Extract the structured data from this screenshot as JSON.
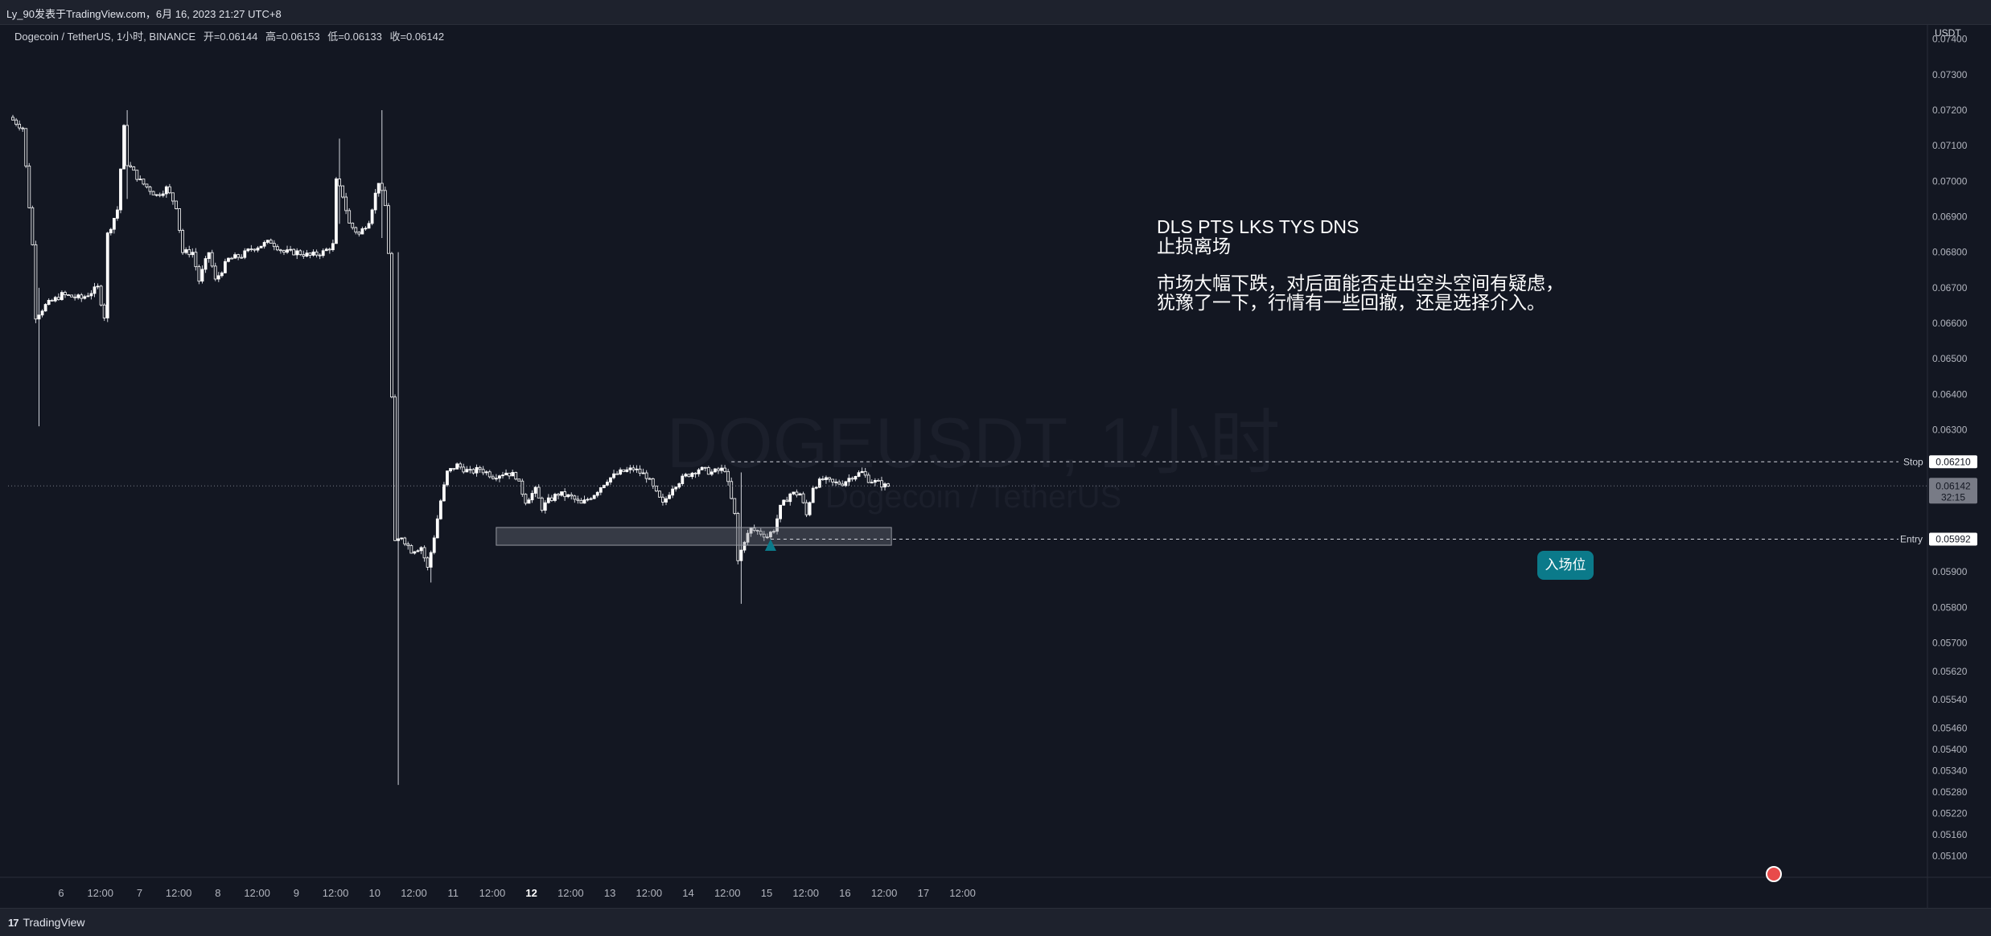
{
  "header": {
    "caption": "Ly_90发表于TradingView.com，6月 16, 2023 21:27 UTC+8"
  },
  "legend": {
    "symbol": "Dogecoin / TetherUS, 1小时, BINANCE",
    "open": "开=0.06144",
    "high": "高=0.06153",
    "low": "低=0.06133",
    "close": "收=0.06142"
  },
  "watermark": {
    "main": "DOGEUSDT, 1小时",
    "sub": "Dogecoin / TetherUS"
  },
  "note": {
    "line1": "DLS PTS LKS TYS DNS",
    "line2": "止损离场",
    "line3": "市场大幅下跌，对后面能否走出空头空间有疑虑，",
    "line4": "犹豫了一下，行情有一些回撤，还是选择介入。"
  },
  "callout": {
    "label": "入场位"
  },
  "footer": {
    "brand": "TradingView"
  },
  "colors": {
    "background": "#131722",
    "candle_up": "#ffffff",
    "candle_down": "#ffffff",
    "wick": "#d1d4dc",
    "grid": "#1c2030",
    "callout": "#0b7a8a"
  },
  "chart_data": {
    "type": "candlestick",
    "currency": "USDT",
    "ylim": [
      0.0504,
      0.0744
    ],
    "y_ticks": [
      "0.07400",
      "0.07300",
      "0.07200",
      "0.07100",
      "0.07000",
      "0.06900",
      "0.06800",
      "0.06700",
      "0.06600",
      "0.06500",
      "0.06400",
      "0.06300",
      "0.05900",
      "0.05800",
      "0.05700",
      "0.05620",
      "0.05540",
      "0.05460",
      "0.05400",
      "0.05340",
      "0.05280",
      "0.05220",
      "0.05160",
      "0.05100"
    ],
    "x_ticks": [
      {
        "label": "6",
        "bold": false
      },
      {
        "label": "12:00",
        "bold": false
      },
      {
        "label": "7",
        "bold": false
      },
      {
        "label": "12:00",
        "bold": false
      },
      {
        "label": "8",
        "bold": false
      },
      {
        "label": "12:00",
        "bold": false
      },
      {
        "label": "9",
        "bold": false
      },
      {
        "label": "12:00",
        "bold": false
      },
      {
        "label": "10",
        "bold": false
      },
      {
        "label": "12:00",
        "bold": false
      },
      {
        "label": "11",
        "bold": false
      },
      {
        "label": "12:00",
        "bold": false
      },
      {
        "label": "12",
        "bold": true
      },
      {
        "label": "12:00",
        "bold": false
      },
      {
        "label": "13",
        "bold": false
      },
      {
        "label": "12:00",
        "bold": false
      },
      {
        "label": "14",
        "bold": false
      },
      {
        "label": "12:00",
        "bold": false
      },
      {
        "label": "15",
        "bold": false
      },
      {
        "label": "12:00",
        "bold": false
      },
      {
        "label": "16",
        "bold": false
      },
      {
        "label": "12:00",
        "bold": false
      },
      {
        "label": "17",
        "bold": false
      },
      {
        "label": "12:00",
        "bold": false
      }
    ],
    "hours_per_day": 24,
    "first_candle_hour": 0,
    "last_price": {
      "value": 0.06142,
      "label": "0.06142",
      "countdown": "32:15"
    },
    "stop": {
      "label": "Stop",
      "value": 0.0621,
      "value_label": "0.06210"
    },
    "entry": {
      "label": "Entry",
      "value": 0.05992,
      "value_label": "0.05992"
    },
    "entry_zone": {
      "from_hour": 148,
      "to_hour": 269,
      "low": 0.05975,
      "high": 0.06025
    },
    "callout_hour": 232,
    "keypoints": [
      [
        0,
        0.0718
      ],
      [
        4,
        0.0715
      ],
      [
        7,
        0.0682
      ],
      [
        8,
        0.0662
      ],
      [
        11,
        0.0665
      ],
      [
        16,
        0.0668
      ],
      [
        22,
        0.0667
      ],
      [
        27,
        0.067
      ],
      [
        29,
        0.0662
      ],
      [
        30,
        0.0685
      ],
      [
        33,
        0.0692
      ],
      [
        35,
        0.0715
      ],
      [
        36,
        0.0705
      ],
      [
        40,
        0.07
      ],
      [
        45,
        0.0696
      ],
      [
        48,
        0.0698
      ],
      [
        51,
        0.0693
      ],
      [
        53,
        0.068
      ],
      [
        56,
        0.068
      ],
      [
        58,
        0.0672
      ],
      [
        61,
        0.068
      ],
      [
        63,
        0.0672
      ],
      [
        67,
        0.0678
      ],
      [
        71,
        0.0679
      ],
      [
        74,
        0.0681
      ],
      [
        77,
        0.0682
      ],
      [
        80,
        0.0683
      ],
      [
        84,
        0.068
      ],
      [
        88,
        0.068
      ],
      [
        92,
        0.0679
      ],
      [
        96,
        0.068
      ],
      [
        99,
        0.0682
      ],
      [
        100,
        0.07
      ],
      [
        102,
        0.0696
      ],
      [
        104,
        0.0688
      ],
      [
        107,
        0.0685
      ],
      [
        110,
        0.0689
      ],
      [
        113,
        0.07
      ],
      [
        115,
        0.0693
      ],
      [
        116,
        0.068
      ],
      [
        118,
        0.0598
      ],
      [
        120,
        0.06
      ],
      [
        123,
        0.0596
      ],
      [
        126,
        0.0597
      ],
      [
        128,
        0.0591
      ],
      [
        130,
        0.06
      ],
      [
        132,
        0.061
      ],
      [
        134,
        0.0618
      ],
      [
        137,
        0.062
      ],
      [
        141,
        0.0618
      ],
      [
        144,
        0.0619
      ],
      [
        148,
        0.0617
      ],
      [
        152,
        0.0618
      ],
      [
        155,
        0.0617
      ],
      [
        158,
        0.061
      ],
      [
        161,
        0.0613
      ],
      [
        163,
        0.0608
      ],
      [
        165,
        0.061
      ],
      [
        168,
        0.0612
      ],
      [
        172,
        0.0611
      ],
      [
        175,
        0.0609
      ],
      [
        179,
        0.0612
      ],
      [
        183,
        0.0616
      ],
      [
        187,
        0.0618
      ],
      [
        191,
        0.0619
      ],
      [
        195,
        0.0617
      ],
      [
        198,
        0.0612
      ],
      [
        200,
        0.0609
      ],
      [
        203,
        0.0614
      ],
      [
        207,
        0.0617
      ],
      [
        211,
        0.0619
      ],
      [
        215,
        0.0618
      ],
      [
        219,
        0.0619
      ],
      [
        222,
        0.0606
      ],
      [
        223,
        0.0593
      ],
      [
        225,
        0.0599
      ],
      [
        227,
        0.0602
      ],
      [
        230,
        0.0601
      ],
      [
        232,
        0.06
      ],
      [
        234,
        0.0602
      ],
      [
        236,
        0.0608
      ],
      [
        239,
        0.0612
      ],
      [
        242,
        0.0612
      ],
      [
        244,
        0.0606
      ],
      [
        246,
        0.0614
      ],
      [
        249,
        0.0616
      ],
      [
        252,
        0.0615
      ],
      [
        255,
        0.0615
      ],
      [
        258,
        0.0617
      ],
      [
        261,
        0.0618
      ],
      [
        263,
        0.0616
      ],
      [
        266,
        0.0615
      ],
      [
        268,
        0.06142
      ]
    ],
    "extremes": [
      {
        "hour": 8,
        "high": 0.067,
        "low": 0.0631
      },
      {
        "hour": 35,
        "high": 0.072,
        "low": 0.0695
      },
      {
        "hour": 100,
        "high": 0.0712,
        "low": 0.0688
      },
      {
        "hour": 113,
        "high": 0.072,
        "low": 0.0684
      },
      {
        "hour": 118,
        "high": 0.068,
        "low": 0.053
      },
      {
        "hour": 128,
        "high": 0.0596,
        "low": 0.0587
      },
      {
        "hour": 223,
        "high": 0.0618,
        "low": 0.0581
      }
    ]
  }
}
